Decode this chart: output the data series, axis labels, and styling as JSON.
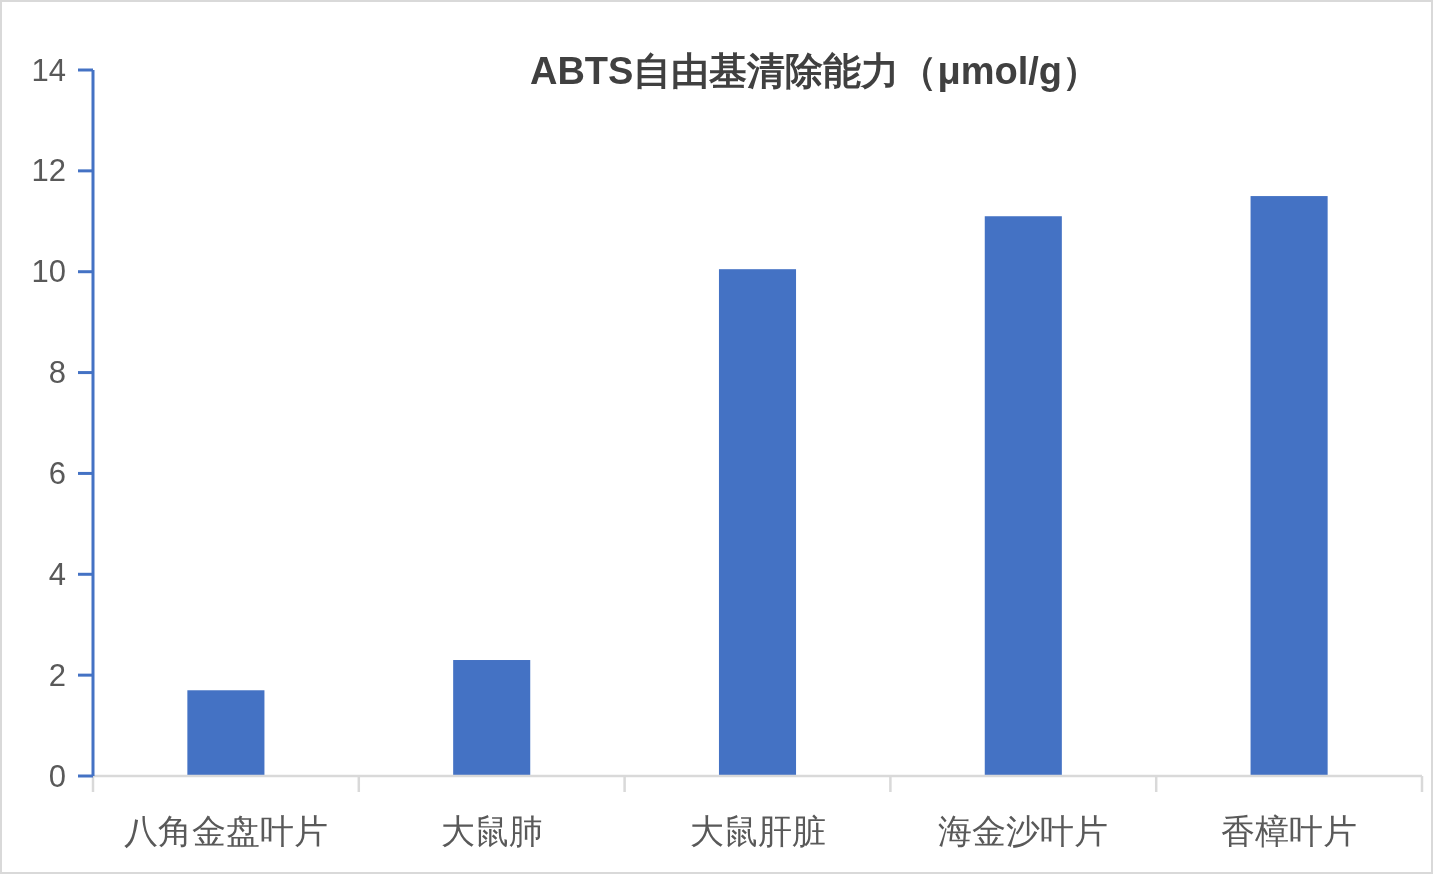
{
  "chart_data": {
    "type": "bar",
    "title": "ABTS自由基清除能力（μmol/g）",
    "categories": [
      "八角金盘叶片",
      "大鼠肺",
      "大鼠肝脏",
      "海金沙叶片",
      "香樟叶片"
    ],
    "values": [
      1.7,
      2.3,
      10.05,
      11.1,
      11.5
    ],
    "color": "#4472c4",
    "ylim": [
      0,
      14
    ],
    "yticks": [
      0,
      2,
      4,
      6,
      8,
      10,
      12,
      14
    ]
  }
}
